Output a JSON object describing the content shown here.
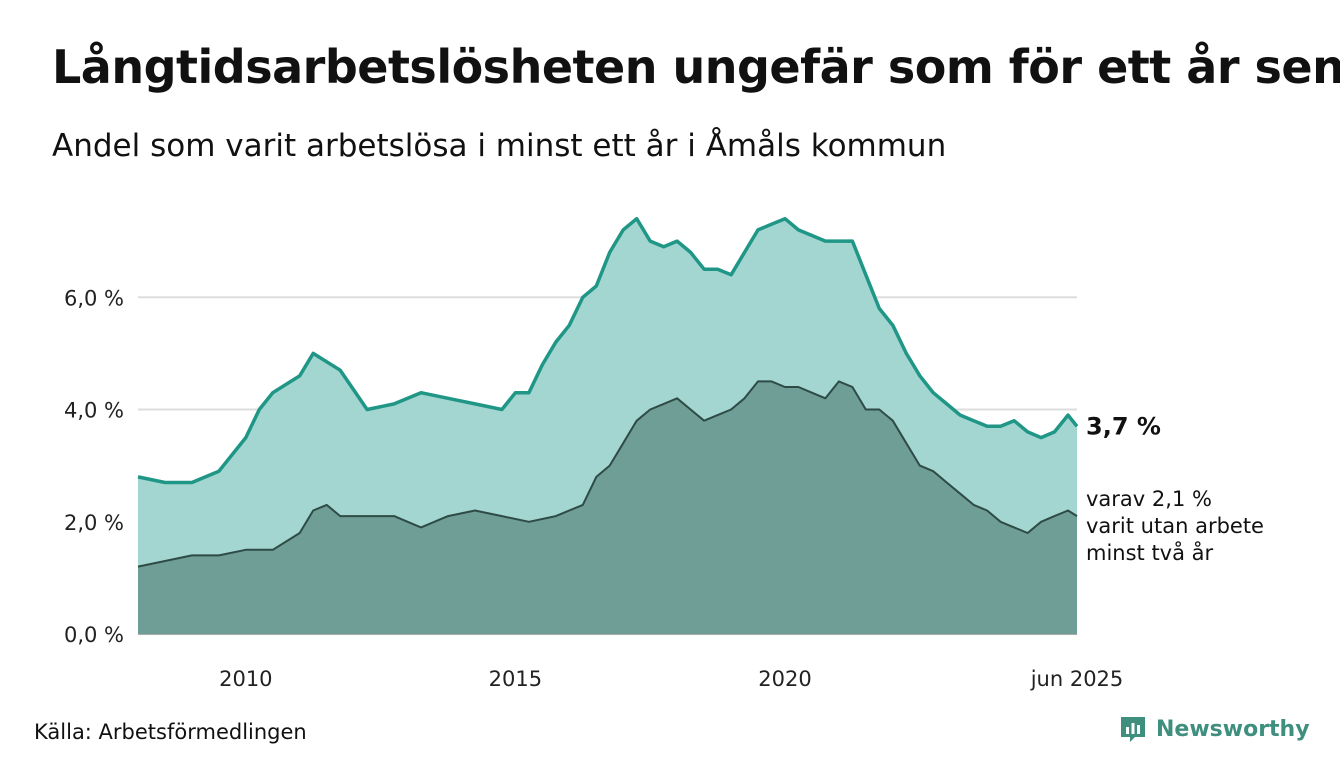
{
  "title": "Långtidsarbetslösheten ungefär som för ett år sen",
  "subtitle": "Andel som varit arbetslösa i minst ett år i Åmåls kommun",
  "source": "Källa: Arbetsförmedlingen",
  "brand": "Newsworthy",
  "colors": {
    "outer_fill": "#a3d6d0",
    "outer_line": "#1f9686",
    "inner_fill": "#6f9e96",
    "inner_line": "#2e4b46",
    "grid": "#dddddd"
  },
  "chart_data": {
    "type": "area",
    "title": "Långtidsarbetslösheten ungefär som för ett år sen",
    "subtitle": "Andel som varit arbetslösa i minst ett år i Åmåls kommun",
    "x_ticks": [
      "2010",
      "2015",
      "2020",
      "jun 2025"
    ],
    "y_ticks": [
      "0,0 %",
      "2,0 %",
      "4,0 %",
      "6,0 %"
    ],
    "ylim": [
      0,
      8
    ],
    "xlim": [
      "2008-01",
      "2025-06"
    ],
    "grid": true,
    "series": [
      {
        "role": "outer",
        "end_label": "3,7 %",
        "points": [
          [
            "2008-01",
            2.8
          ],
          [
            "2008-07",
            2.7
          ],
          [
            "2009-01",
            2.7
          ],
          [
            "2009-07",
            2.9
          ],
          [
            "2010-01",
            3.5
          ],
          [
            "2010-04",
            4.0
          ],
          [
            "2010-07",
            4.3
          ],
          [
            "2011-01",
            4.6
          ],
          [
            "2011-04",
            5.0
          ],
          [
            "2011-10",
            4.7
          ],
          [
            "2012-04",
            4.0
          ],
          [
            "2012-10",
            4.1
          ],
          [
            "2013-04",
            4.3
          ],
          [
            "2013-10",
            4.2
          ],
          [
            "2014-04",
            4.1
          ],
          [
            "2014-10",
            4.0
          ],
          [
            "2015-01",
            4.3
          ],
          [
            "2015-04",
            4.3
          ],
          [
            "2015-07",
            4.8
          ],
          [
            "2015-10",
            5.2
          ],
          [
            "2016-01",
            5.5
          ],
          [
            "2016-04",
            6.0
          ],
          [
            "2016-07",
            6.2
          ],
          [
            "2016-10",
            6.8
          ],
          [
            "2017-01",
            7.2
          ],
          [
            "2017-04",
            7.4
          ],
          [
            "2017-07",
            7.0
          ],
          [
            "2017-10",
            6.9
          ],
          [
            "2018-01",
            7.0
          ],
          [
            "2018-04",
            6.8
          ],
          [
            "2018-07",
            6.5
          ],
          [
            "2018-10",
            6.5
          ],
          [
            "2019-01",
            6.4
          ],
          [
            "2019-04",
            6.8
          ],
          [
            "2019-07",
            7.2
          ],
          [
            "2019-10",
            7.3
          ],
          [
            "2020-01",
            7.4
          ],
          [
            "2020-04",
            7.2
          ],
          [
            "2020-07",
            7.1
          ],
          [
            "2020-10",
            7.0
          ],
          [
            "2021-01",
            7.0
          ],
          [
            "2021-04",
            7.0
          ],
          [
            "2021-07",
            6.4
          ],
          [
            "2021-10",
            5.8
          ],
          [
            "2022-01",
            5.5
          ],
          [
            "2022-04",
            5.0
          ],
          [
            "2022-07",
            4.6
          ],
          [
            "2022-10",
            4.3
          ],
          [
            "2023-01",
            4.1
          ],
          [
            "2023-04",
            3.9
          ],
          [
            "2023-07",
            3.8
          ],
          [
            "2023-10",
            3.7
          ],
          [
            "2024-01",
            3.7
          ],
          [
            "2024-04",
            3.8
          ],
          [
            "2024-07",
            3.6
          ],
          [
            "2024-10",
            3.5
          ],
          [
            "2025-01",
            3.6
          ],
          [
            "2025-04",
            3.9
          ],
          [
            "2025-06",
            3.7
          ]
        ]
      },
      {
        "role": "inner",
        "end_label_lines": [
          "varav 2,1 %",
          "varit utan arbete",
          "minst två år"
        ],
        "points": [
          [
            "2008-01",
            1.2
          ],
          [
            "2008-07",
            1.3
          ],
          [
            "2009-01",
            1.4
          ],
          [
            "2009-07",
            1.4
          ],
          [
            "2010-01",
            1.5
          ],
          [
            "2010-07",
            1.5
          ],
          [
            "2011-01",
            1.8
          ],
          [
            "2011-04",
            2.2
          ],
          [
            "2011-07",
            2.3
          ],
          [
            "2011-10",
            2.1
          ],
          [
            "2012-04",
            2.1
          ],
          [
            "2012-10",
            2.1
          ],
          [
            "2013-04",
            1.9
          ],
          [
            "2013-10",
            2.1
          ],
          [
            "2014-04",
            2.2
          ],
          [
            "2014-10",
            2.1
          ],
          [
            "2015-04",
            2.0
          ],
          [
            "2015-10",
            2.1
          ],
          [
            "2016-04",
            2.3
          ],
          [
            "2016-07",
            2.8
          ],
          [
            "2016-10",
            3.0
          ],
          [
            "2017-01",
            3.4
          ],
          [
            "2017-04",
            3.8
          ],
          [
            "2017-07",
            4.0
          ],
          [
            "2017-10",
            4.1
          ],
          [
            "2018-01",
            4.2
          ],
          [
            "2018-04",
            4.0
          ],
          [
            "2018-07",
            3.8
          ],
          [
            "2018-10",
            3.9
          ],
          [
            "2019-01",
            4.0
          ],
          [
            "2019-04",
            4.2
          ],
          [
            "2019-07",
            4.5
          ],
          [
            "2019-10",
            4.5
          ],
          [
            "2020-01",
            4.4
          ],
          [
            "2020-04",
            4.4
          ],
          [
            "2020-07",
            4.3
          ],
          [
            "2020-10",
            4.2
          ],
          [
            "2021-01",
            4.5
          ],
          [
            "2021-04",
            4.4
          ],
          [
            "2021-07",
            4.0
          ],
          [
            "2021-10",
            4.0
          ],
          [
            "2022-01",
            3.8
          ],
          [
            "2022-04",
            3.4
          ],
          [
            "2022-07",
            3.0
          ],
          [
            "2022-10",
            2.9
          ],
          [
            "2023-01",
            2.7
          ],
          [
            "2023-04",
            2.5
          ],
          [
            "2023-07",
            2.3
          ],
          [
            "2023-10",
            2.2
          ],
          [
            "2024-01",
            2.0
          ],
          [
            "2024-04",
            1.9
          ],
          [
            "2024-07",
            1.8
          ],
          [
            "2024-10",
            2.0
          ],
          [
            "2025-01",
            2.1
          ],
          [
            "2025-04",
            2.2
          ],
          [
            "2025-06",
            2.1
          ]
        ]
      }
    ]
  }
}
